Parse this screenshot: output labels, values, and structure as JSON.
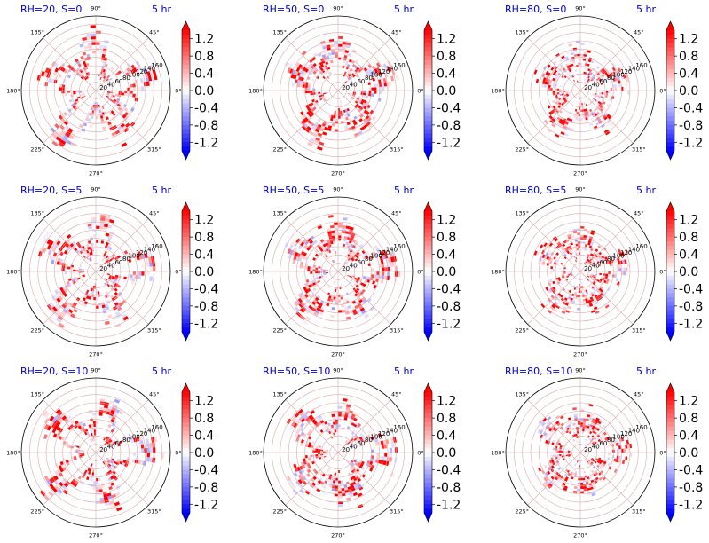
{
  "colors": {
    "title": "#0000cc",
    "pos": "#ff0000",
    "neg": "#0000ff",
    "zero": "#ffffff",
    "grid": "#d8aaaa"
  },
  "chart_data": {
    "type": "polar-heatmap-grid",
    "rows": 3,
    "cols": 3,
    "angular_ticks": [
      "0°",
      "45°",
      "90°",
      "135°",
      "180°",
      "225°",
      "270°",
      "315°"
    ],
    "radial_ticks": [
      "20",
      "40",
      "60",
      "80",
      "100",
      "120",
      "140",
      "160"
    ],
    "rlim": [
      0,
      180
    ],
    "colorbar": {
      "ticks": [
        "1.2",
        "0.8",
        "0.4",
        "0.0",
        "-0.4",
        "-0.8",
        "-1.2"
      ],
      "range": [
        -1.4,
        1.4
      ],
      "extend": "both",
      "colormap": "bwr"
    },
    "panels": [
      {
        "title": "RH=20, S=0",
        "time": "5 hr",
        "rh": 20,
        "s": 0
      },
      {
        "title": "RH=50, S=0",
        "time": "5 hr",
        "rh": 50,
        "s": 0
      },
      {
        "title": "RH=80, S=0",
        "time": "5 hr",
        "rh": 80,
        "s": 0
      },
      {
        "title": "RH=20, S=5",
        "time": "5 hr",
        "rh": 20,
        "s": 5
      },
      {
        "title": "RH=50, S=5",
        "time": "5 hr",
        "rh": 50,
        "s": 5
      },
      {
        "title": "RH=80, S=5",
        "time": "5 hr",
        "rh": 80,
        "s": 5
      },
      {
        "title": "RH=20, S=10",
        "time": "5 hr",
        "rh": 20,
        "s": 10
      },
      {
        "title": "RH=50, S=10",
        "time": "5 hr",
        "rh": 50,
        "s": 10
      },
      {
        "title": "RH=80, S=10",
        "time": "5 hr",
        "rh": 80,
        "s": 10
      }
    ]
  }
}
